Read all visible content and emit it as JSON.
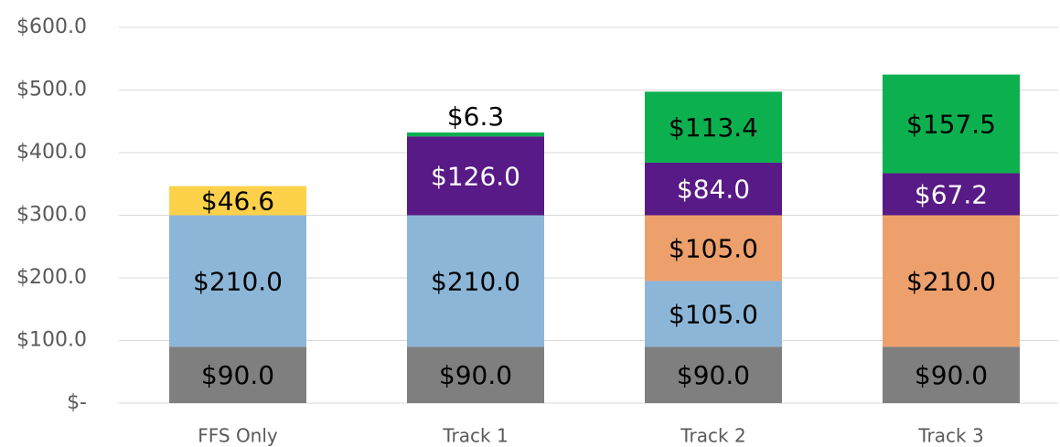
{
  "chart_data": {
    "type": "stacked_bar",
    "categories": [
      "FFS Only",
      "Track 1",
      "Track 2",
      "Track 3"
    ],
    "ylim": [
      0,
      600
    ],
    "yticks": [
      {
        "value": 0,
        "label": "$-"
      },
      {
        "value": 100,
        "label": "$100.0"
      },
      {
        "value": 200,
        "label": "$200.0"
      },
      {
        "value": 300,
        "label": "$300.0"
      },
      {
        "value": 400,
        "label": "$400.0"
      },
      {
        "value": 500,
        "label": "$500.0"
      },
      {
        "value": 600,
        "label": "$600.0"
      }
    ],
    "grid": true,
    "series": [
      {
        "color": "#7f7f7f",
        "label_color": "#000000",
        "values": [
          90,
          90,
          90,
          90
        ],
        "value_labels": [
          "$90.0",
          "$90.0",
          "$90.0",
          "$90.0"
        ]
      },
      {
        "color": "#8cb6d8",
        "label_color": "#000000",
        "values": [
          210,
          210,
          105,
          null
        ],
        "value_labels": [
          "$210.0",
          "$210.0",
          "$105.0",
          null
        ]
      },
      {
        "color": "#eda06c",
        "label_color": "#000000",
        "values": [
          null,
          null,
          105,
          210
        ],
        "value_labels": [
          null,
          null,
          "$105.0",
          "$210.0"
        ]
      },
      {
        "color": "#fdd14a",
        "label_color": "#000000",
        "values": [
          46.6,
          null,
          null,
          null
        ],
        "value_labels": [
          "$46.6",
          null,
          null,
          null
        ]
      },
      {
        "color": "#581a86",
        "label_color": "#ffffff",
        "values": [
          null,
          126,
          84,
          67.2
        ],
        "value_labels": [
          null,
          "$126.0",
          "$84.0",
          "$67.2"
        ]
      },
      {
        "color": "#0db04f",
        "label_color": "#000000",
        "values": [
          null,
          6.3,
          113.4,
          157.5
        ],
        "value_labels": [
          null,
          "$6.3",
          "$113.4",
          "$157.5"
        ]
      }
    ]
  }
}
